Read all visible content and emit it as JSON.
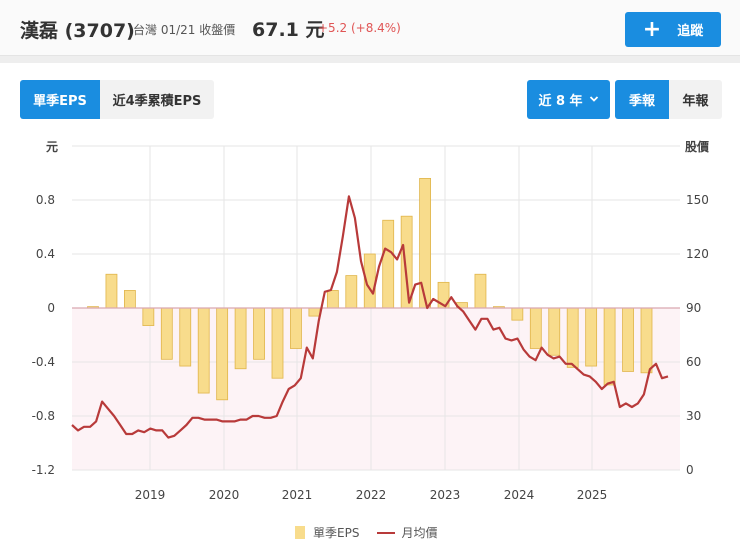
{
  "header": {
    "stock_name": "漢磊 (3707)",
    "market_date_label": "台灣 01/21 收盤價",
    "close_price": "67.1 元",
    "change": "+5.2 (+8.4%)",
    "follow_button": "追蹤",
    "follow_icon": "plus-icon"
  },
  "controls": {
    "eps_tabs": [
      {
        "label": "單季EPS",
        "active": true
      },
      {
        "label": "近4季累積EPS",
        "active": false
      }
    ],
    "range_label": "近 8 年",
    "range_icon": "chevron-down-icon",
    "period_tabs": [
      {
        "label": "季報",
        "active": true
      },
      {
        "label": "年報",
        "active": false
      }
    ]
  },
  "colors": {
    "accent": "#1a8de0",
    "bar_fill": "#f8dc8c",
    "bar_stroke": "#e0b54a",
    "line": "#b83a3a",
    "negative_bg": "#fdf3f6",
    "change_up": "#e05555"
  },
  "chart_data": {
    "type": "bar+line",
    "title": "",
    "left_axis_label": "元",
    "right_axis_label": "股價",
    "left_ticks": [
      "0.8",
      "0.4",
      "0",
      "-0.4",
      "-0.8",
      "-1.2"
    ],
    "right_ticks": [
      "150",
      "120",
      "90",
      "60",
      "30",
      "0"
    ],
    "ylim_left": [
      -1.2,
      1.2
    ],
    "ylim_right": [
      0,
      180
    ],
    "x_ticks": [
      "2019",
      "2020",
      "2021",
      "2022",
      "2023",
      "2024",
      "2025"
    ],
    "legend": [
      "單季EPS",
      "月均價"
    ],
    "series": [
      {
        "name": "單季EPS",
        "type": "bar",
        "categories": [
          "2018Q2",
          "2018Q3",
          "2018Q4",
          "2019Q1",
          "2019Q2",
          "2019Q3",
          "2019Q4",
          "2020Q1",
          "2020Q2",
          "2020Q3",
          "2020Q4",
          "2021Q1",
          "2021Q2",
          "2021Q3",
          "2021Q4",
          "2022Q1",
          "2022Q2",
          "2022Q3",
          "2022Q4",
          "2023Q1",
          "2023Q2",
          "2023Q3",
          "2023Q4",
          "2024Q1",
          "2024Q2",
          "2024Q3",
          "2024Q4",
          "2025Q1",
          "2025Q2",
          "2025Q3",
          "2025Q4"
        ],
        "values": [
          0.01,
          0.25,
          0.13,
          -0.13,
          -0.38,
          -0.43,
          -0.63,
          -0.68,
          -0.45,
          -0.38,
          -0.52,
          -0.3,
          -0.06,
          0.13,
          0.24,
          0.4,
          0.65,
          0.68,
          0.96,
          0.19,
          0.04,
          0.25,
          0.01,
          -0.09,
          -0.3,
          -0.35,
          -0.44,
          -0.43,
          -0.57,
          -0.47,
          -0.48
        ]
      },
      {
        "name": "月均價",
        "type": "line",
        "values": [
          25,
          22,
          24,
          24,
          27,
          38,
          34,
          30,
          25,
          20,
          20,
          22,
          21,
          23,
          22,
          22,
          18,
          19,
          22,
          25,
          29,
          29,
          28,
          28,
          28,
          27,
          27,
          27,
          28,
          28,
          30,
          30,
          29,
          29,
          30,
          38,
          45,
          47,
          51,
          68,
          62,
          83,
          99,
          100,
          110,
          130,
          152,
          140,
          116,
          103,
          98,
          113,
          123,
          121,
          117,
          125,
          93,
          103,
          104,
          90,
          95,
          93,
          91,
          96,
          91,
          88,
          83,
          78,
          84,
          84,
          78,
          79,
          73,
          72,
          73,
          67,
          63,
          61,
          68,
          64,
          62,
          63,
          59,
          59,
          56,
          53,
          52,
          49,
          45,
          48,
          49,
          35,
          37,
          35,
          37,
          42,
          56,
          59,
          51,
          52
        ]
      }
    ]
  }
}
